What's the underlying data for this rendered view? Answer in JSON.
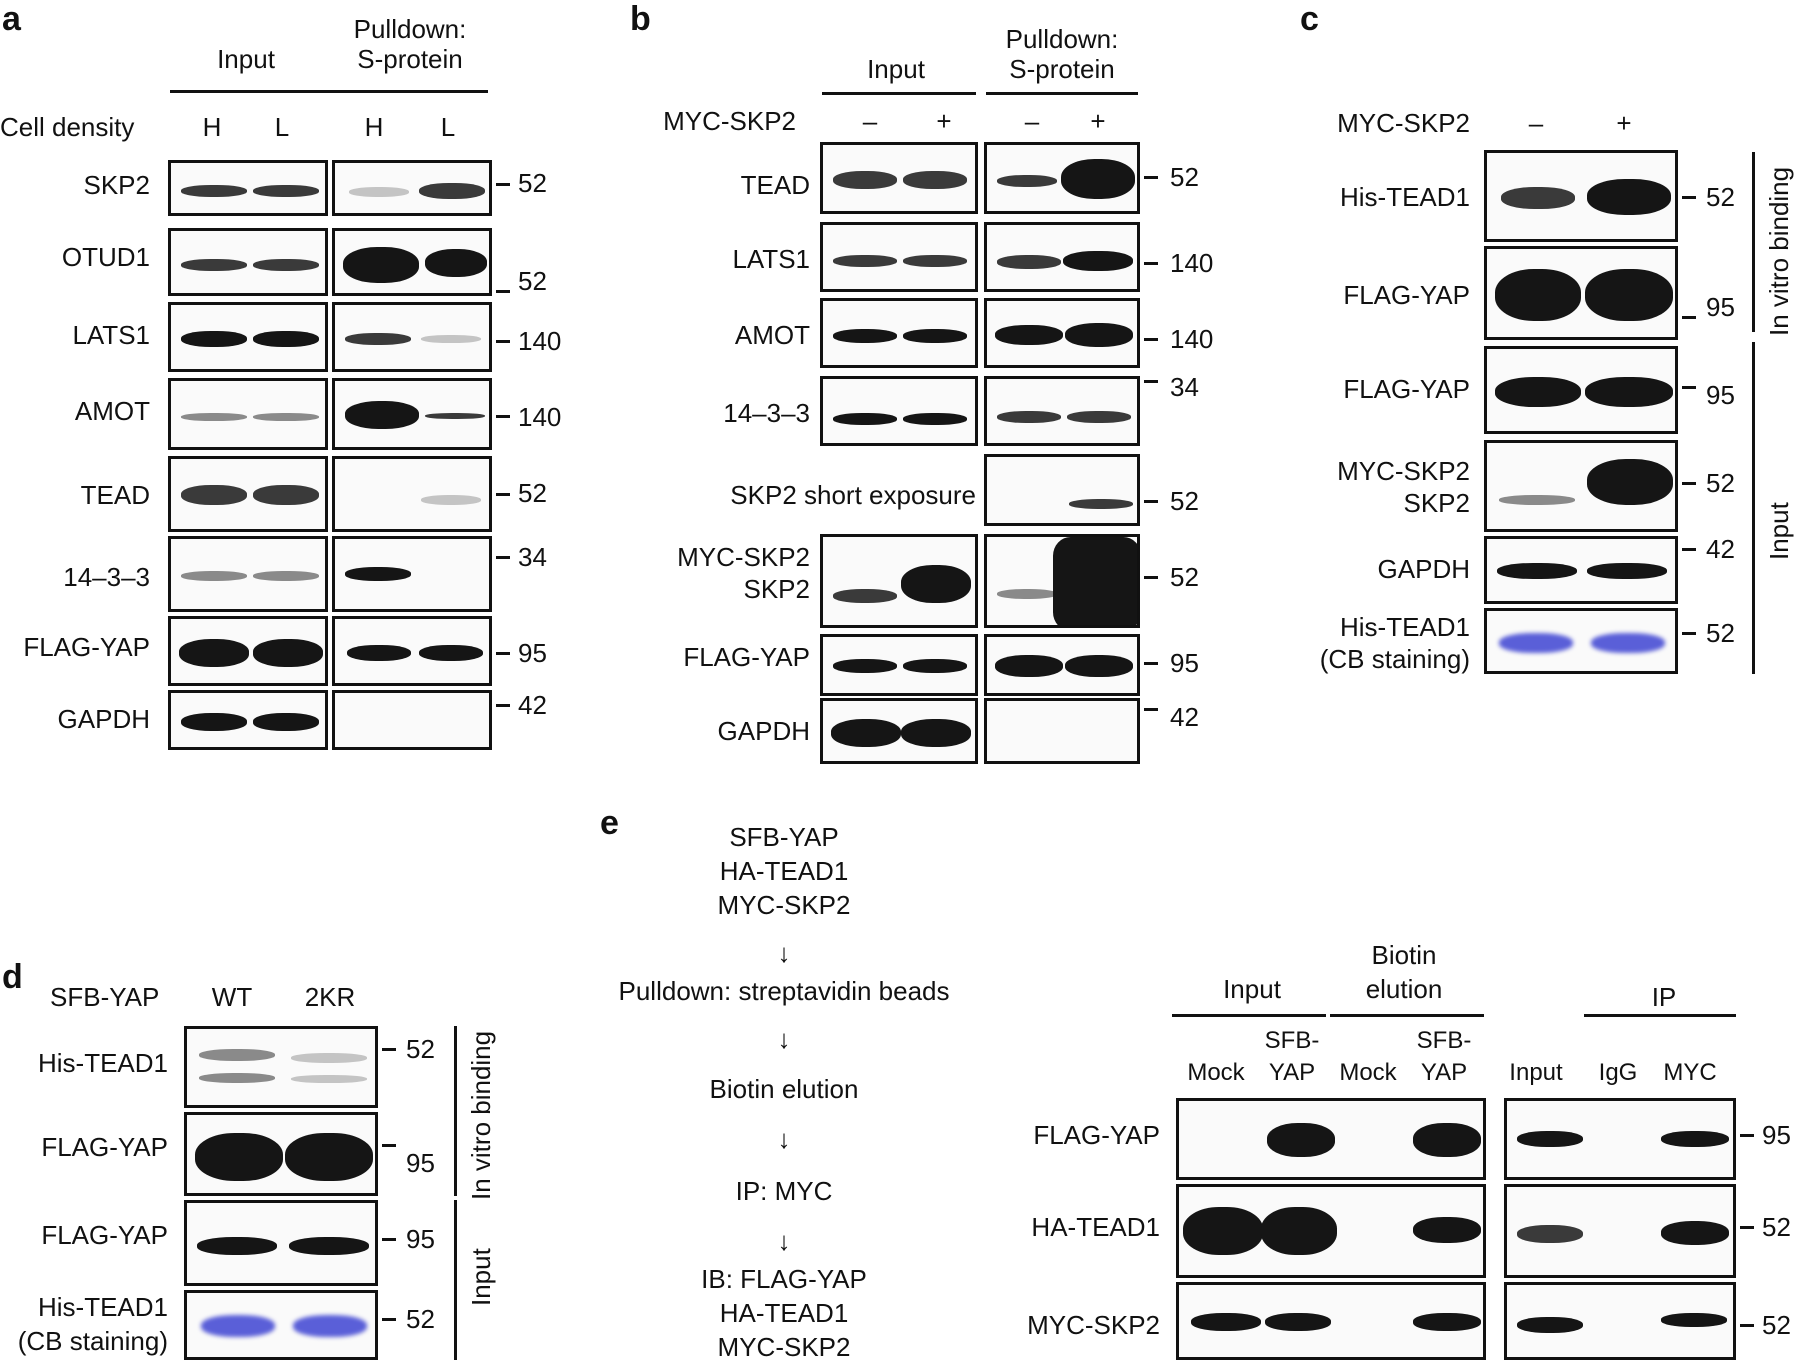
{
  "panels": {
    "a": {
      "letter": "a",
      "input": "Input",
      "pulldown": "Pulldown:",
      "pulldown2": "S-protein",
      "row_label": "Cell density",
      "cols": [
        "H",
        "L",
        "H",
        "L"
      ],
      "rows": [
        "SKP2",
        "OTUD1",
        "LATS1",
        "AMOT",
        "TEAD",
        "14–3–3",
        "FLAG-YAP",
        "GAPDH"
      ],
      "mw": [
        "52",
        "52",
        "140",
        "140",
        "52",
        "34",
        "95",
        "42"
      ]
    },
    "b": {
      "letter": "b",
      "input": "Input",
      "pulldown": "Pulldown:",
      "pulldown2": "S-protein",
      "row_label": "MYC-SKP2",
      "cols": [
        "–",
        "+",
        "–",
        "+"
      ],
      "rows": [
        "TEAD",
        "LATS1",
        "AMOT",
        "14–3–3",
        "SKP2 short exposure",
        "MYC-SKP2",
        "SKP2",
        "FLAG-YAP",
        "GAPDH"
      ],
      "mw": [
        "52",
        "140",
        "140",
        "34",
        "52",
        "52",
        "95",
        "42"
      ]
    },
    "c": {
      "letter": "c",
      "row_label": "MYC-SKP2",
      "cols": [
        "–",
        "+"
      ],
      "rows": [
        "His-TEAD1",
        "FLAG-YAP",
        "FLAG-YAP",
        "MYC-SKP2",
        "SKP2",
        "GAPDH",
        "His-TEAD1",
        "(CB staining)"
      ],
      "mw": [
        "52",
        "95",
        "95",
        "52",
        "42",
        "52"
      ],
      "side1": "In vitro binding",
      "side2": "Input"
    },
    "d": {
      "letter": "d",
      "row_label": "SFB-YAP",
      "cols": [
        "WT",
        "2KR"
      ],
      "rows": [
        "His-TEAD1",
        "FLAG-YAP",
        "FLAG-YAP",
        "His-TEAD1",
        "(CB staining)"
      ],
      "mw": [
        "52",
        "95",
        "95",
        "52"
      ],
      "side1": "In vitro binding",
      "side2": "Input"
    },
    "e": {
      "letter": "e",
      "flow": [
        "SFB-YAP",
        "HA-TEAD1",
        "MYC-SKP2",
        "↓",
        "Pulldown: streptavidin beads",
        "↓",
        "Biotin elution",
        "↓",
        "IP: MYC",
        "↓",
        "IB: FLAG-YAP",
        "HA-TEAD1",
        "MYC-SKP2"
      ],
      "input": "Input",
      "biotin": "Biotin",
      "elution": "elution",
      "ip": "IP",
      "cols": [
        "Mock",
        "SFB-",
        "YAP",
        "Mock",
        "SFB-",
        "YAP",
        "Input",
        "IgG",
        "MYC"
      ],
      "rows": [
        "FLAG-YAP",
        "HA-TEAD1",
        "MYC-SKP2"
      ],
      "mw": [
        "95",
        "52",
        "52"
      ]
    }
  }
}
